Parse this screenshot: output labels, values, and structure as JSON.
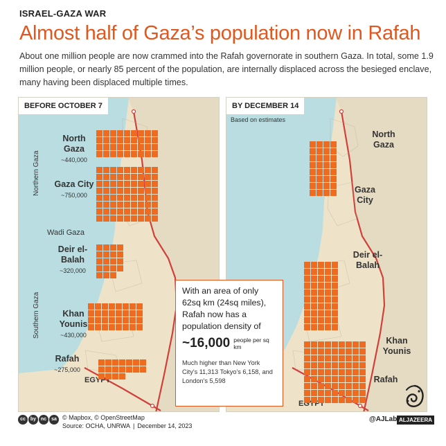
{
  "header": {
    "kicker": "ISRAEL-GAZA WAR",
    "title": "Almost half of Gaza’s population now in Rafah",
    "intro": "About one million people are now crammed into the Rafah governorate in southern Gaza. In total, some 1.9 million people, or nearly 85 percent of the population, are internally displaced across the besieged enclave, many having been displaced multiple times."
  },
  "colors": {
    "accent": "#e2571e",
    "population_block": "#ee6b1f",
    "sea": "#b9dde0",
    "land": "#eee3c9",
    "border_line": "#d0403a"
  },
  "before": {
    "label": "BEFORE OCTOBER 7",
    "region_north": "Northern Gaza",
    "region_south": "Southern Gaza",
    "wadi": "Wadi Gaza",
    "egypt": "EGYPT",
    "places": [
      {
        "name": "North Gaza",
        "pop": "~440,000"
      },
      {
        "name": "Gaza City",
        "pop": "~750,000"
      },
      {
        "name": "Deir el-Balah",
        "pop": "~320,000"
      },
      {
        "name": "Khan Younis",
        "pop": "~430,000"
      },
      {
        "name": "Rafah",
        "pop": "~275,000"
      }
    ]
  },
  "after": {
    "label": "BY DECEMBER 14",
    "note": "Based on estimates",
    "egypt": "EGYPT",
    "places": [
      "North Gaza",
      "Gaza City",
      "Deir el-Balah",
      "Khan Younis",
      "Rafah"
    ]
  },
  "population_blocks": {
    "before": [
      {
        "governorate": "North Gaza",
        "rows": 4,
        "cols": 9
      },
      {
        "governorate": "Gaza City",
        "rows": 8,
        "cols": 9
      },
      {
        "governorate": "Deir el-Balah",
        "rows": 4,
        "cols": 4,
        "partial_row": 3
      },
      {
        "governorate": "Khan Younis",
        "rows": 4,
        "cols": 8
      },
      {
        "governorate": "Rafah",
        "rows": 2,
        "cols": 7,
        "partial_row": 4
      }
    ],
    "after": [
      {
        "governorate": "North Gaza",
        "rows": 8,
        "cols": 4
      },
      {
        "governorate": "Deir el-Balah",
        "rows": 10,
        "cols": 5
      },
      {
        "governorate": "Rafah",
        "rows": 9,
        "cols": 9
      }
    ]
  },
  "density": {
    "lead": "With an area of only 62sq km (24sq miles), Rafah now has a population density of",
    "value": "~16,000",
    "unit": "people per sq km",
    "compare": "Much higher than New York City's 11,313 Tokyo's 6,158, and London's 5,598"
  },
  "footer": {
    "license_icons": [
      "cc",
      "by",
      "nc",
      "sa"
    ],
    "credit_line": "© Mapbox, © OpenStreetMap",
    "source": "Source: OCHA, UNRWA",
    "date": "December 14, 2023",
    "brand": "@AJLabs",
    "logo_word": "ALJAZEERA"
  }
}
